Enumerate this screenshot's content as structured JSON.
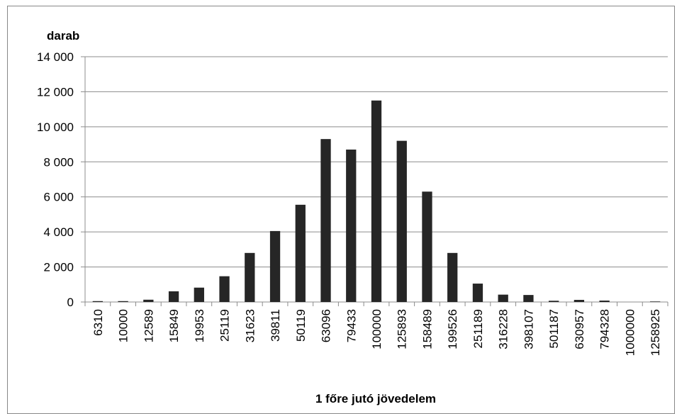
{
  "chart_data": {
    "type": "bar",
    "y_axis_label": "darab",
    "x_axis_label": "1 főre jutó jövedelem",
    "categories": [
      "6310",
      "10000",
      "12589",
      "15849",
      "19953",
      "25119",
      "31623",
      "39811",
      "50119",
      "63096",
      "79433",
      "100000",
      "125893",
      "158489",
      "199526",
      "251189",
      "316228",
      "398107",
      "501187",
      "630957",
      "794328",
      "1000000",
      "1258925"
    ],
    "values": [
      50,
      50,
      130,
      610,
      820,
      1470,
      2800,
      4050,
      5550,
      9300,
      8700,
      11500,
      9200,
      6300,
      2800,
      1050,
      420,
      400,
      70,
      120,
      80,
      0,
      30
    ],
    "color": "#262626",
    "ylim": [
      0,
      14000
    ],
    "yticks": [
      0,
      {
        "value": 2000,
        "label": "2 000"
      },
      {
        "value": 4000,
        "label": "4 000"
      },
      {
        "value": 6000,
        "label": "6 000"
      },
      {
        "value": 8000,
        "label": "8 000"
      },
      {
        "value": 10000,
        "label": "10 000"
      },
      {
        "value": 12000,
        "label": "12 000"
      },
      {
        "value": 14000,
        "label": "14 000"
      }
    ],
    "grid": true
  }
}
